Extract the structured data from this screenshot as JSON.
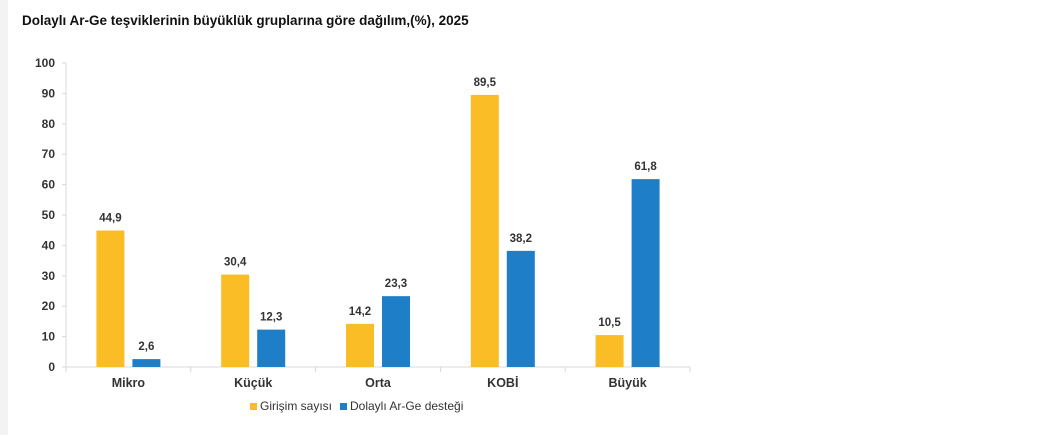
{
  "chart_data": {
    "type": "bar",
    "title": "Dolaylı Ar-Ge teşviklerinin büyüklük gruplarına göre dağılım,(%), 2025",
    "xlabel": "",
    "ylabel": "",
    "categories": [
      "Mikro",
      "Küçük",
      "Orta",
      "KOBİ",
      "Büyük"
    ],
    "series": [
      {
        "name": "Girişim sayısı",
        "color": "#FBBD26",
        "values": [
          44.9,
          30.4,
          14.2,
          89.5,
          10.5
        ],
        "labels": [
          "44,9",
          "30,4",
          "14,2",
          "89,5",
          "10,5"
        ]
      },
      {
        "name": "Dolaylı Ar-Ge desteği",
        "color": "#1E7EC8",
        "values": [
          2.6,
          12.3,
          23.3,
          38.2,
          61.8
        ],
        "labels": [
          "2,6",
          "12,3",
          "23,3",
          "38,2",
          "61,8"
        ]
      }
    ],
    "ylim": [
      0,
      100
    ],
    "yticks": [
      0,
      10,
      20,
      30,
      40,
      50,
      60,
      70,
      80,
      90,
      100
    ],
    "grid": false,
    "legend_position": "bottom"
  }
}
